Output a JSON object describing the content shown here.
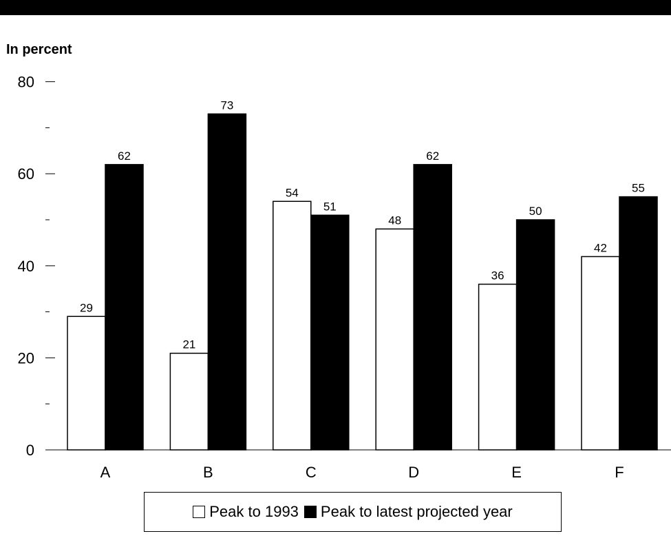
{
  "header": {
    "unit_label": "In percent"
  },
  "chart_data": {
    "type": "bar",
    "title": "",
    "xlabel": "",
    "ylabel": "In percent",
    "ylim": [
      0,
      80
    ],
    "yticks_major": [
      0,
      20,
      40,
      60,
      80
    ],
    "yticks_minor": [
      10,
      30,
      50,
      70
    ],
    "categories": [
      "A",
      "B",
      "C",
      "D",
      "E",
      "F"
    ],
    "series": [
      {
        "name": "Peak to 1993",
        "values": [
          29,
          21,
          54,
          48,
          36,
          42
        ],
        "color": "#ffffff"
      },
      {
        "name": "Peak to latest projected year",
        "values": [
          62,
          73,
          51,
          62,
          50,
          55
        ],
        "color": "#000000"
      }
    ],
    "data_labels": true,
    "legend_position": "bottom-center"
  }
}
